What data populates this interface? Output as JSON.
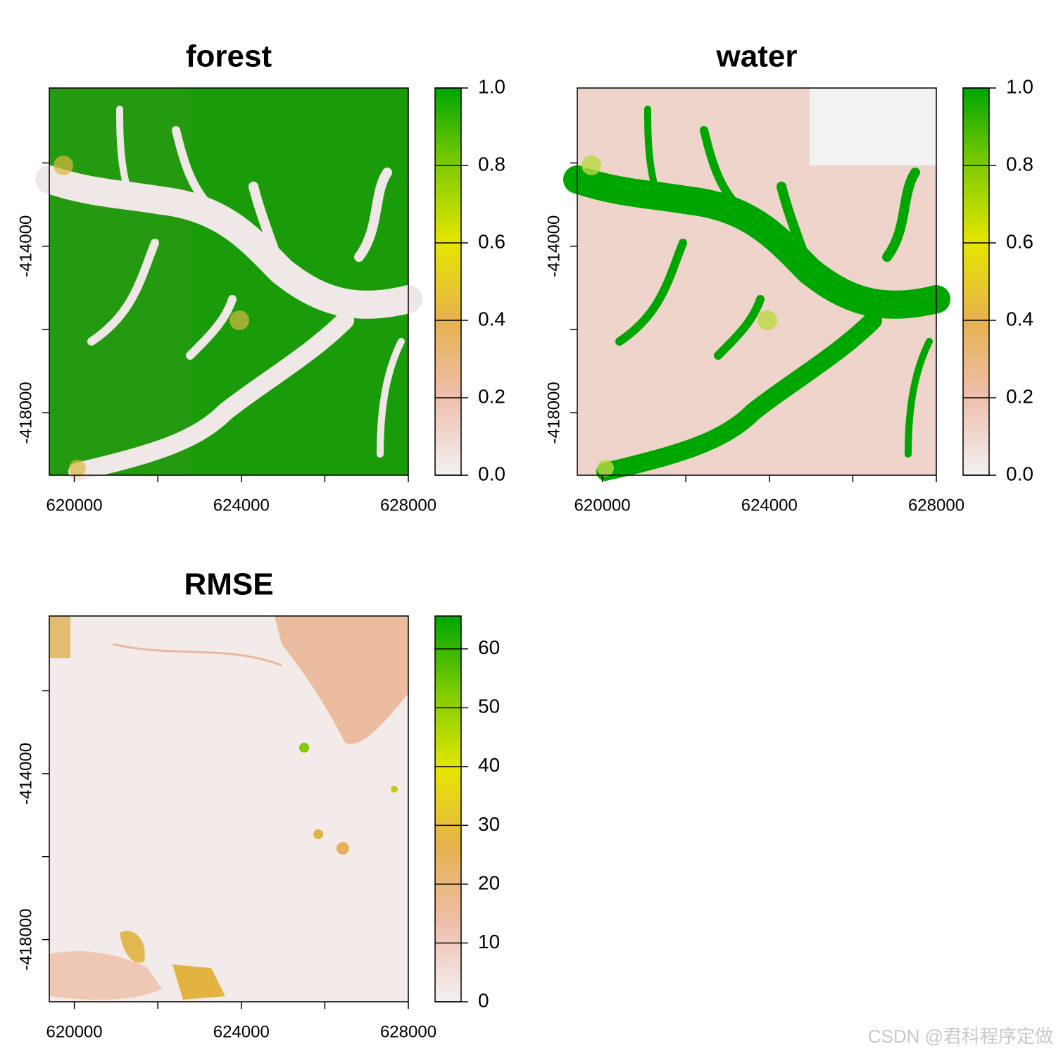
{
  "chart_data": [
    {
      "type": "raster",
      "title": "forest",
      "xlim": [
        619400,
        628000
      ],
      "xticks": [
        620000,
        624000,
        628000
      ],
      "xminorticks": [
        622000,
        626000
      ],
      "ylim": [
        -419500,
        -410200
      ],
      "yticks": [
        -414000,
        -418000
      ],
      "yminorticks": [
        -412000,
        -416000
      ],
      "zlim": [
        0,
        1
      ],
      "zticks": [
        {
          "value": 0,
          "label": "0.0"
        },
        0.2,
        0.4,
        0.6,
        0.8,
        {
          "value": 1,
          "label": "1.0"
        }
      ],
      "colors": [
        "#f2f2f2",
        "#eebfae",
        "#e6b14f",
        "#e6e600",
        "#7fcc00",
        "#00a600"
      ]
    },
    {
      "type": "raster",
      "title": "water",
      "xlim": [
        619400,
        628000
      ],
      "xticks": [
        620000,
        624000,
        628000
      ],
      "xminorticks": [
        622000,
        626000
      ],
      "ylim": [
        -419500,
        -410200
      ],
      "yticks": [
        -414000,
        -418000
      ],
      "yminorticks": [
        -412000,
        -416000
      ],
      "zlim": [
        0,
        1
      ],
      "zticks": [
        {
          "value": 0,
          "label": "0.0"
        },
        0.2,
        0.4,
        0.6,
        0.8,
        {
          "value": 1,
          "label": "1.0"
        }
      ],
      "colors": [
        "#f2f2f2",
        "#eebfae",
        "#e6b14f",
        "#e6e600",
        "#7fcc00",
        "#00a600"
      ]
    },
    {
      "type": "raster",
      "title": "RMSE",
      "xlim": [
        619400,
        628000
      ],
      "xticks": [
        620000,
        624000,
        628000
      ],
      "xminorticks": [
        622000,
        626000
      ],
      "ylim": [
        -419500,
        -410200
      ],
      "yticks": [
        -414000,
        -418000
      ],
      "yminorticks": [
        -412000,
        -416000
      ],
      "zlim": [
        0,
        65.6
      ],
      "zticks": [
        0,
        10,
        20,
        30,
        40,
        50,
        60
      ],
      "colors": [
        "#f2f2f2",
        "#eebfae",
        "#e6b14f",
        "#e6e600",
        "#7fcc00",
        "#00a600"
      ]
    }
  ],
  "watermark": "CSDN @君科程序定做"
}
